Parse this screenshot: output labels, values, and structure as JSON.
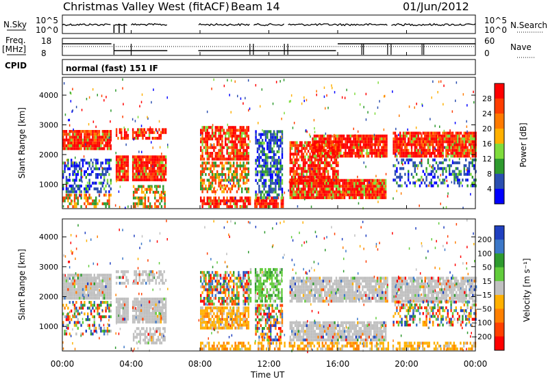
{
  "header": {
    "title": "Christmas Valley West (fitACF)",
    "beam": "Beam 14",
    "date": "01/Jun/2012"
  },
  "params": {
    "nsky_label": "N.Sky",
    "nsky_ticks": [
      "10^5",
      "10^0"
    ],
    "nsearch_label": "N.Search",
    "freq_label_1": "Freq.",
    "freq_label_2": "[MHz]",
    "freq_ticks": [
      "18",
      "8"
    ],
    "nave_ticks": [
      "60",
      "0"
    ],
    "nave_label": "Nave",
    "cpid_label": "CPID",
    "cpid_value": "normal (fast) 151 IF"
  },
  "chart_data": [
    {
      "type": "heatmap",
      "name": "power",
      "ylabel": "Slant Range [km]",
      "yticks": [
        "4000",
        "3000",
        "2000",
        "1000"
      ],
      "ylim": [
        180,
        4600
      ],
      "xlim_hours": [
        0,
        24
      ],
      "colorbar": {
        "label": "Power [dB]",
        "ticks": [
          "28",
          "24",
          "20",
          "16",
          "12",
          "8",
          "4"
        ],
        "colors": [
          "#ff0000",
          "#ff3d00",
          "#ff7a00",
          "#ffb000",
          "#7fdc3c",
          "#2e9a2e",
          "#2b4fb0",
          "#0000ff"
        ]
      }
    },
    {
      "type": "heatmap",
      "name": "velocity",
      "ylabel": "Slant Range [km]",
      "yticks": [
        "4000",
        "3000",
        "2000",
        "1000"
      ],
      "ylim": [
        180,
        4600
      ],
      "xlim_hours": [
        0,
        24
      ],
      "xlabel": "Time UT",
      "xticks": [
        "00:00",
        "04:00",
        "08:00",
        "12:00",
        "16:00",
        "20:00",
        "00:00"
      ],
      "colorbar": {
        "label": "Velocity [m s⁻¹]",
        "ticks": [
          "200",
          "100",
          "50",
          "15",
          "−15",
          "−50",
          "−100",
          "−200"
        ],
        "colors": [
          "#2040c0",
          "#3c78c8",
          "#2e9a2e",
          "#62cc3c",
          "#c0c0c0",
          "#ffb000",
          "#ff8000",
          "#ff4000",
          "#ff0000"
        ]
      }
    }
  ]
}
